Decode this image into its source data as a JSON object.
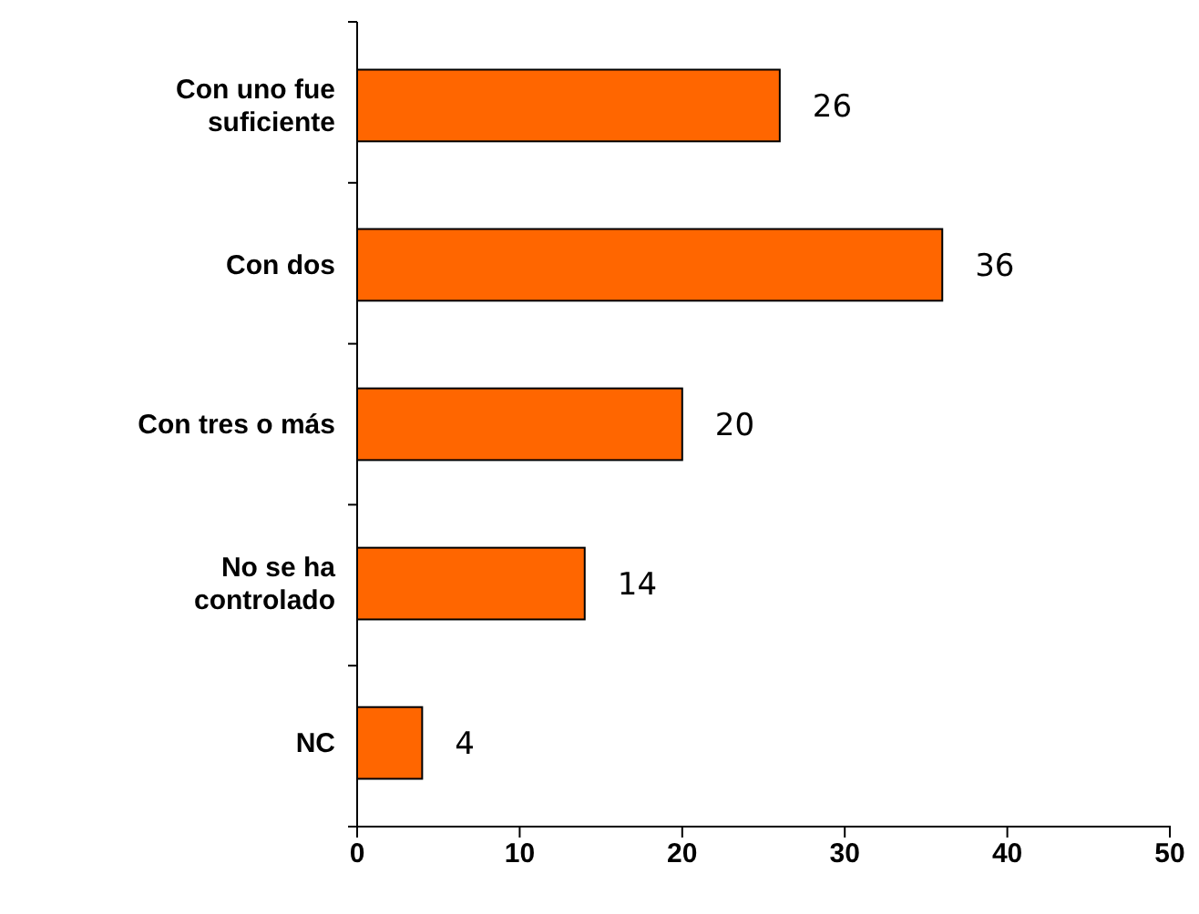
{
  "chart_data": {
    "type": "bar",
    "orientation": "horizontal",
    "categories": [
      "Con uno fue suficiente",
      "Con dos",
      "Con tres o más",
      "No se ha controlado",
      "NC"
    ],
    "values": [
      26,
      36,
      20,
      14,
      4
    ],
    "color": "#ff6600",
    "xlim": [
      0,
      50
    ],
    "xticks": [
      0,
      10,
      20,
      30,
      40,
      50
    ],
    "data_labels": true,
    "grid": false
  }
}
